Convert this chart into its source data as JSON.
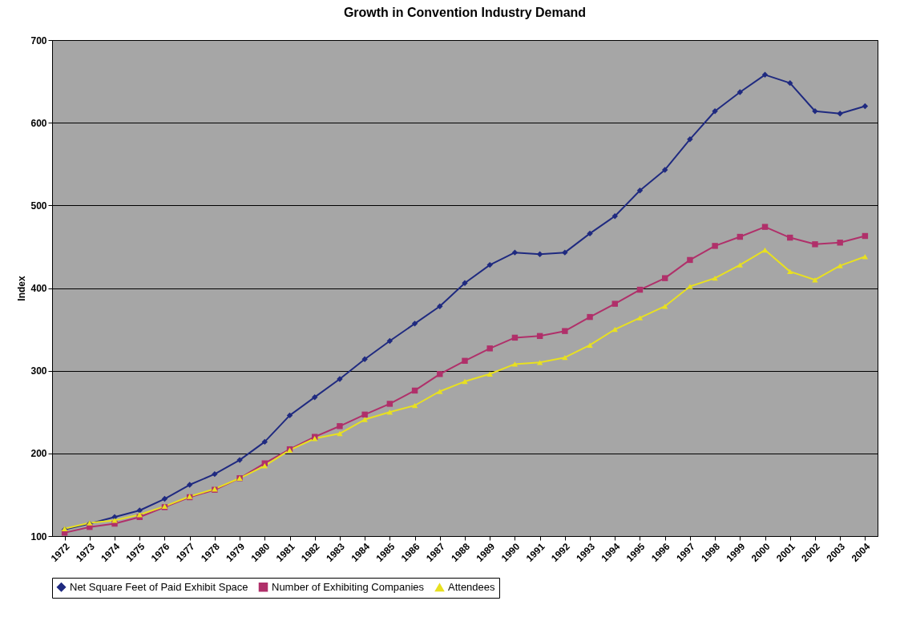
{
  "chart_data": {
    "type": "line",
    "title": "Growth in Convention Industry Demand",
    "ylabel": "Index",
    "categories": [
      "1972",
      "1973",
      "1974",
      "1975",
      "1976",
      "1977",
      "1978",
      "1979",
      "1980",
      "1981",
      "1982",
      "1983",
      "1984",
      "1985",
      "1986",
      "1987",
      "1988",
      "1989",
      "1990",
      "1991",
      "1992",
      "1993",
      "1994",
      "1995",
      "1996",
      "1997",
      "1998",
      "1999",
      "2000",
      "2001",
      "2002",
      "2003",
      "2004"
    ],
    "series": [
      {
        "name": "Net Square Feet of Paid Exhibit Space",
        "color": "#1f2a80",
        "marker": "diamond",
        "values": [
          108,
          115,
          123,
          131,
          145,
          162,
          175,
          192,
          214,
          246,
          268,
          290,
          314,
          336,
          357,
          378,
          406,
          428,
          443,
          441,
          443,
          466,
          487,
          518,
          543,
          580,
          614,
          637,
          658,
          648,
          614,
          611,
          620
        ]
      },
      {
        "name": "Number of Exhibiting Companies",
        "color": "#b0306a",
        "marker": "square",
        "values": [
          104,
          111,
          115,
          123,
          135,
          147,
          156,
          170,
          188,
          205,
          220,
          233,
          247,
          260,
          276,
          296,
          312,
          327,
          340,
          342,
          348,
          365,
          381,
          398,
          412,
          434,
          451,
          462,
          474,
          461,
          453,
          455,
          463
        ]
      },
      {
        "name": "Attendees",
        "color": "#e8e020",
        "marker": "triangle",
        "values": [
          109,
          116,
          119,
          126,
          136,
          148,
          157,
          170,
          185,
          204,
          218,
          224,
          241,
          250,
          258,
          275,
          287,
          296,
          308,
          310,
          316,
          331,
          350,
          364,
          378,
          402,
          412,
          428,
          446,
          420,
          410,
          427,
          438
        ]
      }
    ],
    "ylim": [
      100,
      700
    ],
    "yticks": [
      100,
      200,
      300,
      400,
      500,
      600,
      700
    ],
    "grid": "y",
    "legend": "bottom"
  }
}
